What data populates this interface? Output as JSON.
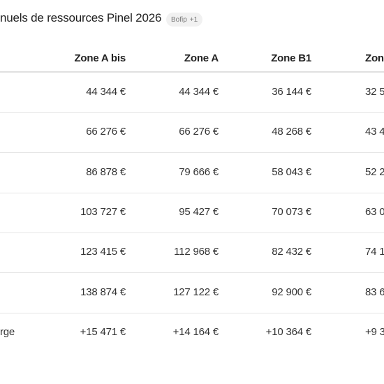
{
  "header": {
    "title": "nuels de ressources Pinel 2026",
    "badge": {
      "label": "Bofip",
      "count": "+1"
    }
  },
  "table": {
    "columns": [
      "Zone A bis",
      "Zone A",
      "Zone B1",
      "Zon"
    ],
    "rows": [
      {
        "values": [
          "44 344 €",
          "44 344 €",
          "36 144 €",
          "32 5"
        ]
      },
      {
        "values": [
          "66 276 €",
          "66 276 €",
          "48 268 €",
          "43 4"
        ]
      },
      {
        "values": [
          "86 878 €",
          "79 666 €",
          "58 043 €",
          "52 2"
        ]
      },
      {
        "values": [
          "103 727 €",
          "95 427 €",
          "70 073 €",
          "63 0"
        ]
      },
      {
        "values": [
          "123 415 €",
          "112 968 €",
          "82 432 €",
          "74 1"
        ]
      },
      {
        "values": [
          "138 874 €",
          "127 122 €",
          "92 900 €",
          "83 6"
        ]
      },
      {
        "label": "rge",
        "values": [
          "+15 471 €",
          "+14 164 €",
          "+10 364 €",
          "+9 3"
        ]
      }
    ]
  }
}
